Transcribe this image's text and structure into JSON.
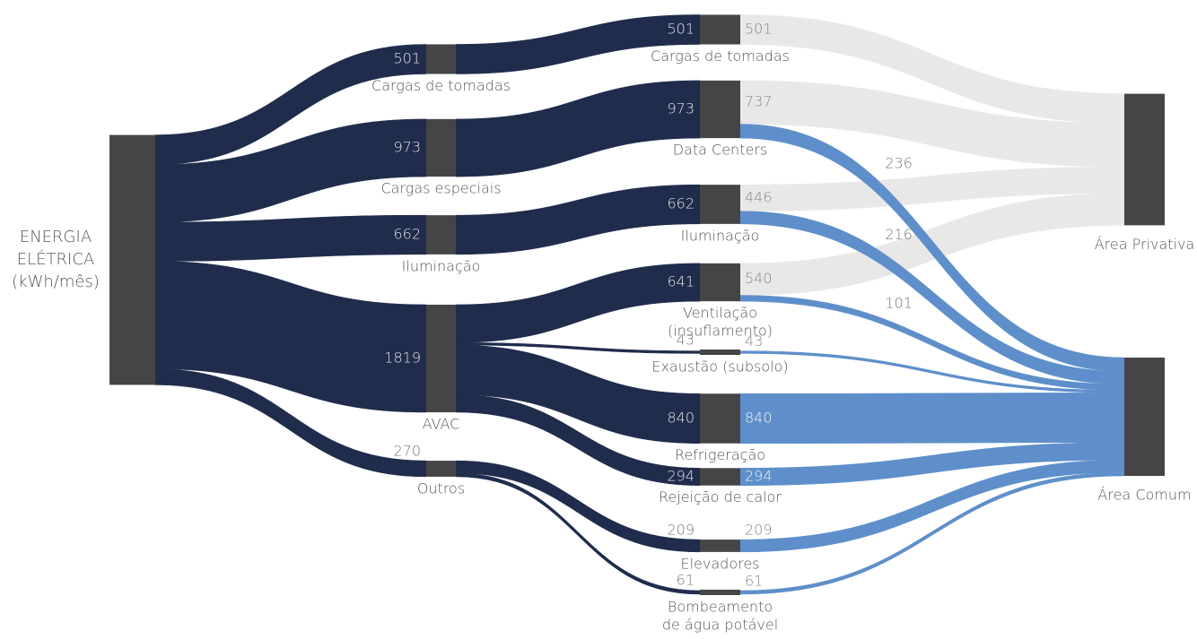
{
  "chart_data": {
    "type": "sankey",
    "node_color": "#454545",
    "nodes": [
      {
        "label": [
          "ENERGIA",
          "ELÉTRICA",
          "(kWh/mês)"
        ]
      },
      {
        "label": [
          "Cargas de tomadas"
        ],
        "value": 501
      },
      {
        "label": [
          "Cargas especiais"
        ],
        "value": 973
      },
      {
        "label": [
          "Iluminação"
        ],
        "value": 662
      },
      {
        "label": [
          "AVAC"
        ],
        "value": 1819
      },
      {
        "label": [
          "Outros"
        ],
        "value": 270
      },
      {
        "label": [
          "Cargas de tomadas"
        ],
        "value": 501
      },
      {
        "label": [
          "Data Centers"
        ],
        "value": 973
      },
      {
        "label": [
          "Iluminação"
        ],
        "value": 662
      },
      {
        "label": [
          "Ventilação",
          "(insuflamento)"
        ],
        "value": 641
      },
      {
        "label": [
          "Exaustão (subsolo)"
        ],
        "value": 43
      },
      {
        "label": [
          "Refrigeração"
        ],
        "value": 840
      },
      {
        "label": [
          "Rejeição de calor"
        ],
        "value": 294
      },
      {
        "label": [
          "Elevadores"
        ],
        "value": 209
      },
      {
        "label": [
          "Bombeamento",
          "de água potável"
        ],
        "value": 61
      },
      {
        "label": [
          "Área Privativa"
        ]
      },
      {
        "label": [
          "Área Comum"
        ]
      }
    ],
    "links": [
      {
        "source": 0,
        "target": 1,
        "value": 501,
        "color": "#1f2c4c"
      },
      {
        "source": 0,
        "target": 2,
        "value": 973,
        "color": "#1f2c4c"
      },
      {
        "source": 0,
        "target": 3,
        "value": 662,
        "color": "#1f2c4c"
      },
      {
        "source": 0,
        "target": 4,
        "value": 1819,
        "color": "#1f2c4c"
      },
      {
        "source": 0,
        "target": 5,
        "value": 270,
        "color": "#1f2c4c"
      },
      {
        "source": 1,
        "target": 6,
        "value": 501,
        "color": "#1f2c4c"
      },
      {
        "source": 2,
        "target": 7,
        "value": 973,
        "color": "#1f2c4c"
      },
      {
        "source": 3,
        "target": 8,
        "value": 662,
        "color": "#1f2c4c"
      },
      {
        "source": 4,
        "target": 9,
        "value": 641,
        "color": "#1f2c4c"
      },
      {
        "source": 4,
        "target": 10,
        "value": 43,
        "color": "#1f2c4c"
      },
      {
        "source": 4,
        "target": 11,
        "value": 840,
        "color": "#1f2c4c"
      },
      {
        "source": 4,
        "target": 12,
        "value": 294,
        "color": "#1f2c4c"
      },
      {
        "source": 5,
        "target": 13,
        "value": 209,
        "color": "#1f2c4c"
      },
      {
        "source": 5,
        "target": 14,
        "value": 61,
        "color": "#1f2c4c"
      },
      {
        "source": 6,
        "target": 15,
        "value": 501,
        "color": "#e8e8e8"
      },
      {
        "source": 7,
        "target": 15,
        "value": 737,
        "color": "#e8e8e8"
      },
      {
        "source": 8,
        "target": 15,
        "value": 446,
        "color": "#e8e8e8"
      },
      {
        "source": 9,
        "target": 15,
        "value": 540,
        "color": "#e8e8e8"
      },
      {
        "source": 7,
        "target": 16,
        "value": 236,
        "color": "#5e8fca"
      },
      {
        "source": 8,
        "target": 16,
        "value": 216,
        "color": "#5e8fca"
      },
      {
        "source": 9,
        "target": 16,
        "value": 101,
        "color": "#5e8fca"
      },
      {
        "source": 10,
        "target": 16,
        "value": 43,
        "color": "#5e8fca"
      },
      {
        "source": 11,
        "target": 16,
        "value": 840,
        "color": "#5e8fca"
      },
      {
        "source": 12,
        "target": 16,
        "value": 294,
        "color": "#5e8fca"
      },
      {
        "source": 13,
        "target": 16,
        "value": 209,
        "color": "#5e8fca"
      },
      {
        "source": 14,
        "target": 16,
        "value": 61,
        "color": "#5e8fca"
      }
    ]
  }
}
